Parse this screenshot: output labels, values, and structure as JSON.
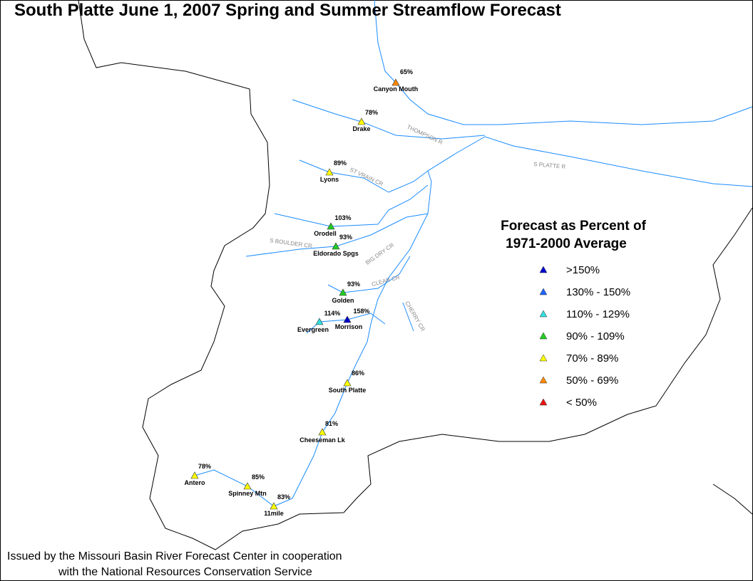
{
  "title": "South Platte June 1, 2007 Spring and Summer Streamflow Forecast",
  "legend": {
    "title": [
      "Forecast as Percent of",
      "1971-2000 Average"
    ],
    "items": [
      {
        "label": ">150%",
        "color": "#0000cc"
      },
      {
        "label": "130% - 150%",
        "color": "#1e64ff"
      },
      {
        "label": "110% - 129%",
        "color": "#33dddd"
      },
      {
        "label": "90% - 109%",
        "color": "#22cc22"
      },
      {
        "label": "70% - 89%",
        "color": "#ffff00"
      },
      {
        "label": "50% - 69%",
        "color": "#ff8800"
      },
      {
        "label": "< 50%",
        "color": "#ee1111"
      }
    ]
  },
  "stations": [
    {
      "name": "Canyon Mouth",
      "percent": "65%",
      "color": "#ff8800"
    },
    {
      "name": "Drake",
      "percent": "78%",
      "color": "#ffff00"
    },
    {
      "name": "Lyons",
      "percent": "89%",
      "color": "#ffff00"
    },
    {
      "name": "Orodell",
      "percent": "103%",
      "color": "#22cc22"
    },
    {
      "name": "Eldorado Spgs",
      "percent": "93%",
      "color": "#22cc22"
    },
    {
      "name": "Golden",
      "percent": "93%",
      "color": "#22cc22"
    },
    {
      "name": "Evergreen",
      "percent": "114%",
      "color": "#33dddd"
    },
    {
      "name": "Morrison",
      "percent": "158%",
      "color": "#0000cc"
    },
    {
      "name": "South Platte",
      "percent": "86%",
      "color": "#ffff00"
    },
    {
      "name": "Cheeseman Lk",
      "percent": "81%",
      "color": "#ffff00"
    },
    {
      "name": "Antero",
      "percent": "78%",
      "color": "#ffff00"
    },
    {
      "name": "Spinney Mtn",
      "percent": "85%",
      "color": "#ffff00"
    },
    {
      "name": "11mile",
      "percent": "83%",
      "color": "#ffff00"
    }
  ],
  "rivers": [
    "THOMPSON R",
    "S PLATTE R",
    "ST VRAIN CR",
    "BIG DRY CR",
    "CLEAR CR",
    "CHERRY CR",
    "S BOULDER CR"
  ],
  "footer": [
    "Issued by the Missouri Basin River Forecast Center in cooperation",
    "with the National Resources Conservation Service"
  ]
}
